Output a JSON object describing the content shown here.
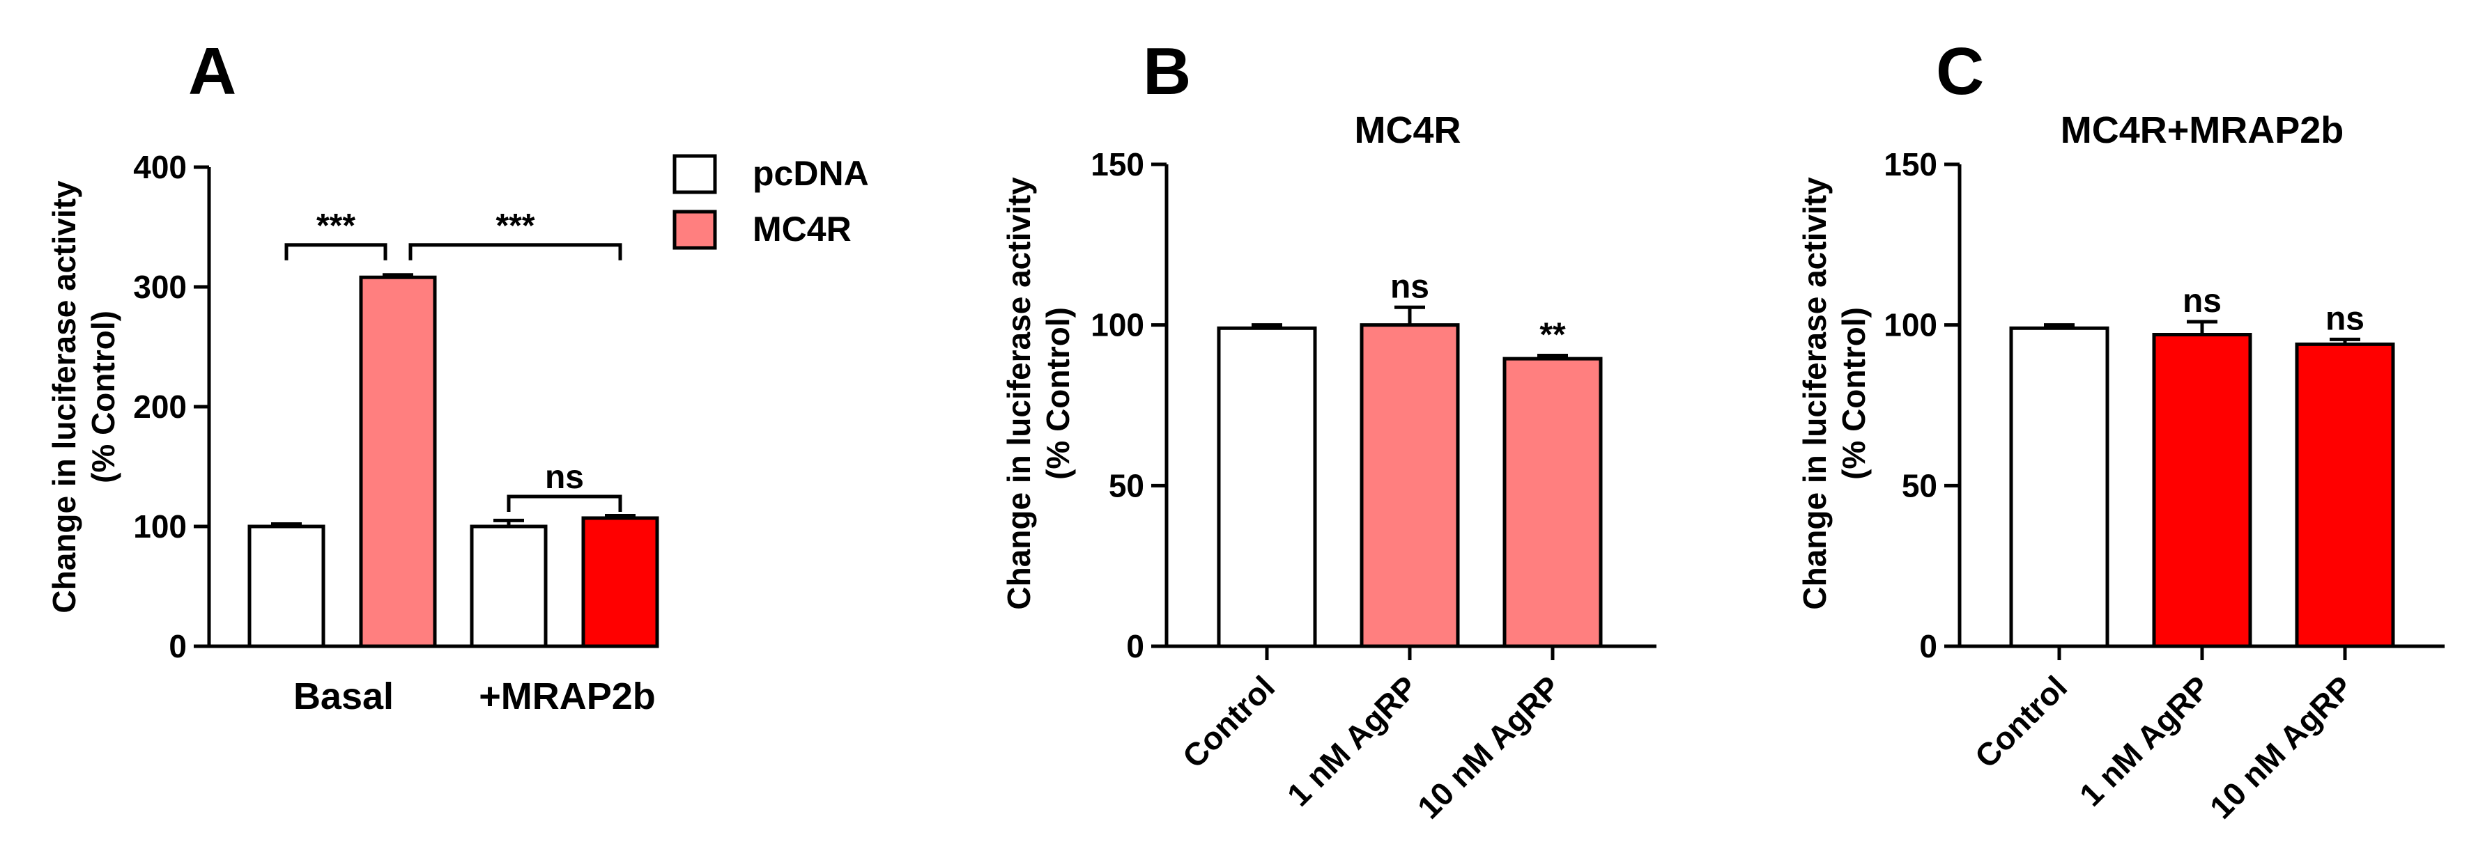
{
  "chart_data": [
    {
      "panel": "A",
      "type": "bar",
      "title": "",
      "ylabel_line1": "Change in luciferase activity",
      "ylabel_line2": "(% Control)",
      "ylim": [
        0,
        400
      ],
      "yticks": [
        0,
        100,
        200,
        300,
        400
      ],
      "groups": [
        "Basal",
        "+MRAP2b"
      ],
      "legend": [
        {
          "name": "pcDNA",
          "color": "#ffffff"
        },
        {
          "name": "MC4R",
          "color": "#ff7f7f"
        }
      ],
      "legend_position": "top-right",
      "bars": [
        {
          "group": "Basal",
          "series": "pcDNA",
          "value": 100,
          "error": 2,
          "color": "#ffffff"
        },
        {
          "group": "Basal",
          "series": "MC4R",
          "value": 308,
          "error": 2,
          "color": "#ff7f7f"
        },
        {
          "group": "+MRAP2b",
          "series": "pcDNA",
          "value": 100,
          "error": 5,
          "color": "#ffffff"
        },
        {
          "group": "+MRAP2b",
          "series": "MC4R",
          "value": 107,
          "error": 2,
          "color": "#ff0000"
        }
      ],
      "annotations": [
        {
          "from": 0,
          "to": 1,
          "y": 335,
          "label": "***"
        },
        {
          "from": 1,
          "to": 3,
          "y": 335,
          "label": "***"
        },
        {
          "from": 2,
          "to": 3,
          "y": 125,
          "label": "ns"
        }
      ]
    },
    {
      "panel": "B",
      "type": "bar",
      "title": "MC4R",
      "ylabel_line1": "Change in luciferase activity",
      "ylabel_line2": "(% Control)",
      "ylim": [
        0,
        150
      ],
      "yticks": [
        0,
        50,
        100,
        150
      ],
      "categories": [
        "Control",
        "1 nM AgRP",
        "10 nM AgRP"
      ],
      "values": [
        99,
        100,
        89.5
      ],
      "errors": [
        1,
        5.5,
        1
      ],
      "colors": [
        "#ffffff",
        "#ff7f7f",
        "#ff7f7f"
      ],
      "labels": [
        "",
        "ns",
        "**"
      ]
    },
    {
      "panel": "C",
      "type": "bar",
      "title": "MC4R+MRAP2b",
      "ylabel_line1": "Change in luciferase activity",
      "ylabel_line2": "(% Control)",
      "ylim": [
        0,
        150
      ],
      "yticks": [
        0,
        50,
        100,
        150
      ],
      "categories": [
        "Control",
        "1 nM AgRP",
        "10 nM AgRP"
      ],
      "values": [
        99,
        97,
        94
      ],
      "errors": [
        1,
        4,
        1.5
      ],
      "colors": [
        "#ffffff",
        "#ff0000",
        "#ff0000"
      ],
      "labels": [
        "",
        "ns",
        "ns"
      ]
    }
  ]
}
